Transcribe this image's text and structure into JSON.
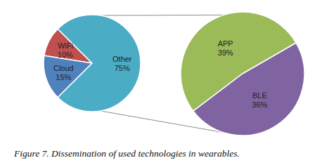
{
  "chart_data": [
    {
      "type": "pie",
      "title": "Figure 7. Dissemination of used technologies in wearables.",
      "categories": [
        "WiFi",
        "Cloud",
        "Other"
      ],
      "values": [
        10,
        15,
        75
      ],
      "value_labels": [
        "10%",
        "15%",
        "75%"
      ],
      "colors": [
        "#c0504d",
        "#4f81bd",
        "#4bacc6"
      ],
      "data_labels": true
    },
    {
      "type": "pie",
      "categories": [
        "APP",
        "BLE"
      ],
      "values": [
        39,
        36
      ],
      "value_labels": [
        "39%",
        "36%"
      ],
      "colors": [
        "#9bbb59",
        "#8064a2"
      ],
      "data_labels": true
    }
  ]
}
